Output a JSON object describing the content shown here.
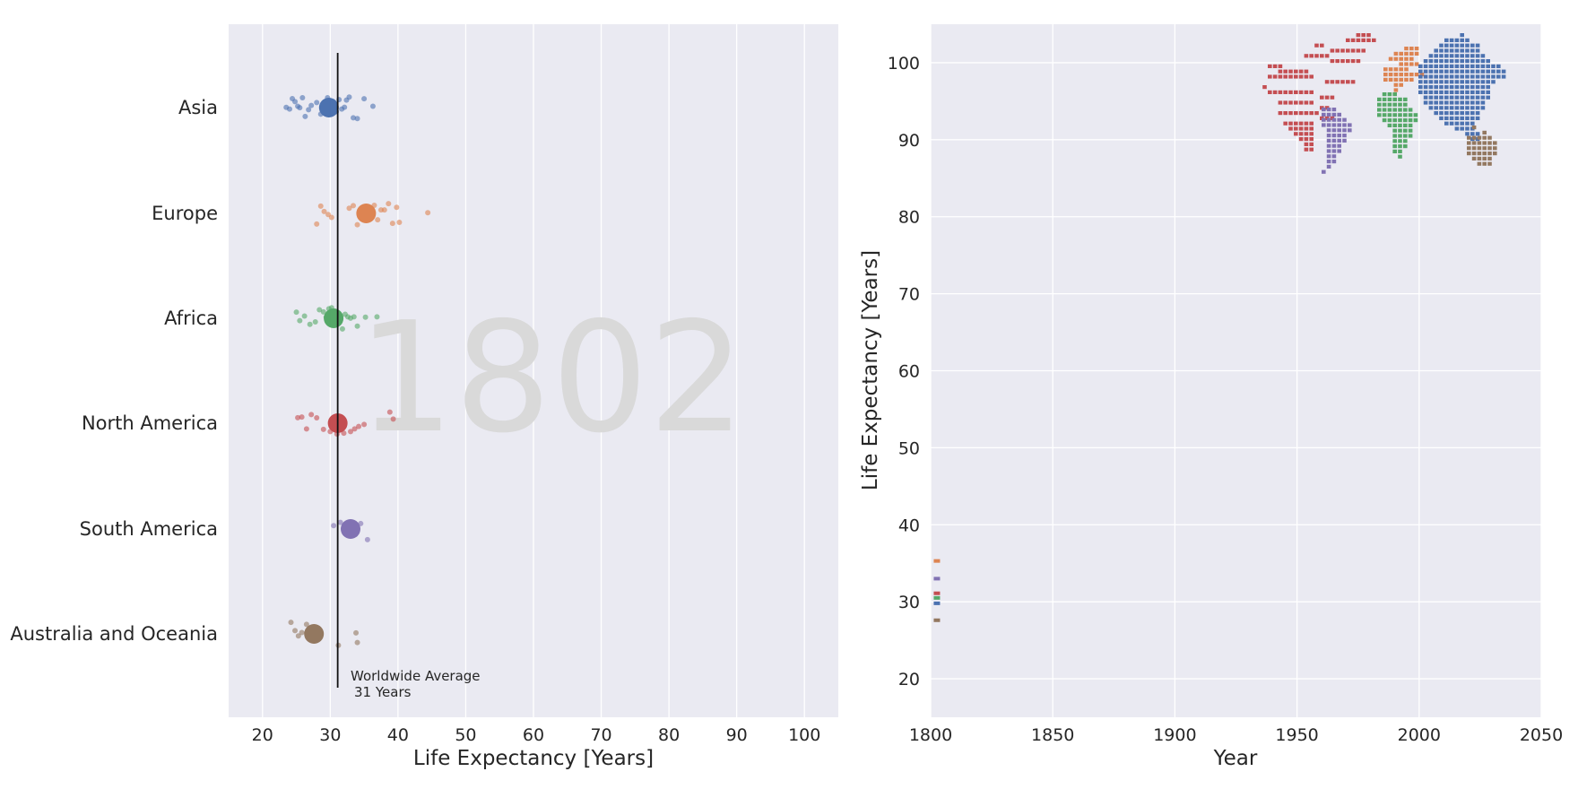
{
  "colors": {
    "Asia": "#4c72b0",
    "Europe": "#dd8452",
    "Africa": "#55a868",
    "North America": "#c44e52",
    "South America": "#8172b3",
    "Australia and Oceania": "#937860",
    "panel_bg": "#eaeaf2"
  },
  "chart_data": [
    {
      "type": "scatter",
      "subtype": "strip-plot",
      "year_watermark": "1802",
      "xlabel": "Life Expectancy [Years]",
      "ylabel": "",
      "xlim": [
        15,
        105
      ],
      "xticks": [
        "20",
        "30",
        "40",
        "50",
        "60",
        "70",
        "80",
        "90",
        "100"
      ],
      "categories": [
        "Asia",
        "Europe",
        "Africa",
        "North America",
        "South America",
        "Australia and Oceania"
      ],
      "category_means": [
        29.8,
        35.3,
        30.5,
        31.1,
        33.0,
        27.6
      ],
      "points": {
        "Asia": [
          23.5,
          24.0,
          24.4,
          24.8,
          25.2,
          25.5,
          25.9,
          26.3,
          26.8,
          27.2,
          28.0,
          28.6,
          29.1,
          29.6,
          30.0,
          30.4,
          30.9,
          31.3,
          31.7,
          32.1,
          32.4,
          32.8,
          33.4,
          34.0,
          35.0,
          36.3
        ],
        "Europe": [
          28.0,
          28.6,
          29.1,
          29.7,
          30.2,
          32.8,
          33.4,
          34.0,
          34.5,
          35.0,
          35.5,
          36.0,
          36.5,
          37.0,
          37.5,
          38.0,
          38.6,
          39.2,
          39.8,
          40.2,
          44.4
        ],
        "Africa": [
          25.0,
          25.5,
          26.2,
          27.0,
          27.8,
          28.4,
          29.0,
          29.4,
          29.8,
          30.2,
          30.6,
          31.0,
          31.4,
          31.8,
          32.2,
          32.6,
          33.0,
          33.5,
          34.0,
          35.2,
          36.9
        ],
        "North America": [
          25.2,
          25.8,
          26.5,
          27.2,
          28.0,
          29.0,
          30.0,
          31.0,
          32.0,
          33.0,
          33.6,
          34.2,
          35.0,
          38.8,
          39.3
        ],
        "South America": [
          30.5,
          31.5,
          32.3,
          33.0,
          33.7,
          34.5,
          35.5
        ],
        "Australia and Oceania": [
          24.2,
          24.8,
          25.3,
          25.8,
          26.5,
          31.2,
          33.8,
          34.0
        ]
      },
      "worldwide_average": 31.1,
      "annotation": {
        "line1": "Worldwide Average",
        "line2": "31 Years"
      }
    },
    {
      "type": "scatter",
      "xlabel": "Year",
      "ylabel": "Life Expectancy [Years]",
      "xlim": [
        1800,
        2050
      ],
      "ylim": [
        15,
        105
      ],
      "xticks": [
        "1800",
        "1850",
        "1900",
        "1950",
        "2000",
        "2050"
      ],
      "yticks": [
        "20",
        "30",
        "40",
        "50",
        "60",
        "70",
        "80",
        "90",
        "100"
      ],
      "series": [
        {
          "name": "Europe",
          "x": [
            1802
          ],
          "y": [
            35.3
          ]
        },
        {
          "name": "South America",
          "x": [
            1802
          ],
          "y": [
            33.0
          ]
        },
        {
          "name": "North America",
          "x": [
            1802
          ],
          "y": [
            31.1
          ]
        },
        {
          "name": "Africa",
          "x": [
            1802
          ],
          "y": [
            30.5
          ]
        },
        {
          "name": "Asia",
          "x": [
            1802
          ],
          "y": [
            29.8
          ]
        },
        {
          "name": "Australia and Oceania",
          "x": [
            1802
          ],
          "y": [
            27.6
          ]
        }
      ],
      "inset_map": {
        "type": "world-map-legend",
        "regions": [
          "North America",
          "South America",
          "Europe",
          "Africa",
          "Asia",
          "Australia and Oceania"
        ]
      }
    }
  ]
}
